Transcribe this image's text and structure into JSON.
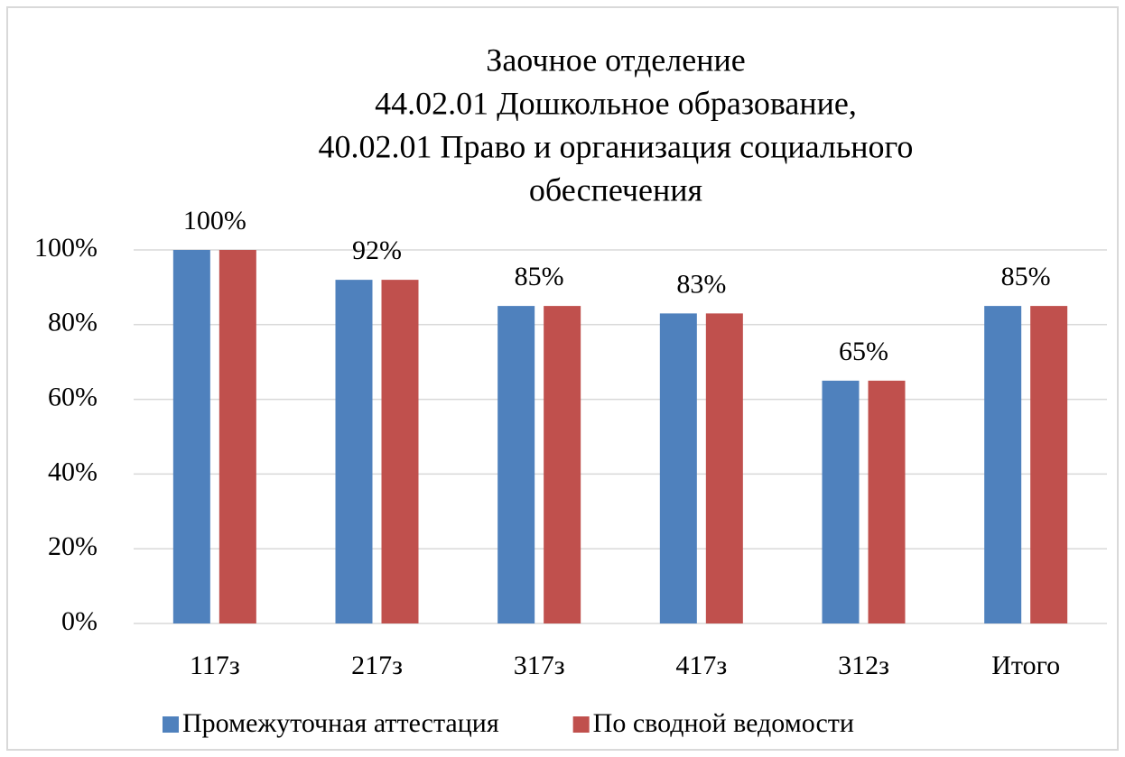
{
  "chart_data": {
    "type": "bar",
    "title": [
      "Заочное отделение",
      "44.02.01 Дошкольное образование,",
      "40.02.01 Право и организация социального",
      "обеспечения"
    ],
    "categories": [
      "117з",
      "217з",
      "317з",
      "417з",
      "312з",
      "Итого"
    ],
    "series": [
      {
        "name": "Промежуточная аттестация",
        "color": "#4f81bd",
        "values": [
          100,
          92,
          85,
          83,
          65,
          85
        ],
        "value_labels": [
          "100%",
          "92%",
          "85%",
          "83%",
          "65%",
          "85%"
        ]
      },
      {
        "name": "По сводной ведомости",
        "color": "#c0504d",
        "values": [
          100,
          92,
          85,
          83,
          65,
          85
        ]
      }
    ],
    "ylim": [
      0,
      100
    ],
    "yticks": [
      {
        "value": 0,
        "label": "0%"
      },
      {
        "value": 20,
        "label": "20%"
      },
      {
        "value": 40,
        "label": "40%"
      },
      {
        "value": 60,
        "label": "60%"
      },
      {
        "value": 80,
        "label": "80%"
      },
      {
        "value": 100,
        "label": "100%"
      }
    ],
    "grid": true,
    "legend": "bottom"
  }
}
